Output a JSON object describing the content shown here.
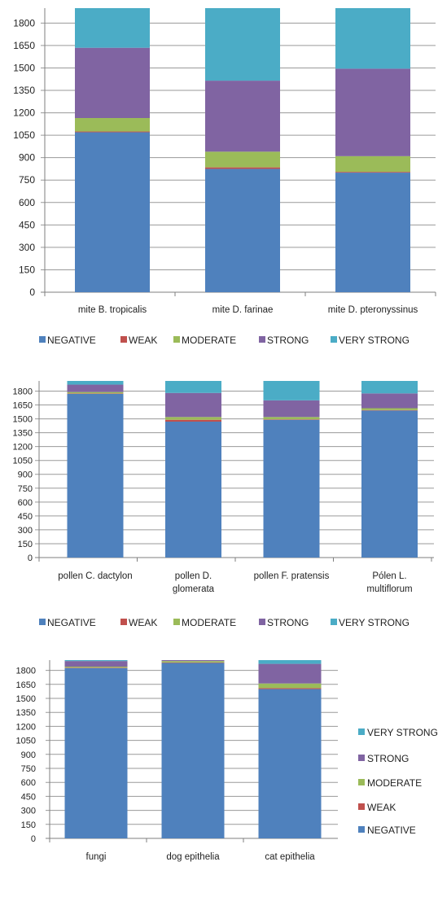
{
  "colors": {
    "NEGATIVE": "#4f81bd",
    "WEAK": "#c0504d",
    "MODERATE": "#9bbb59",
    "STRONG": "#8064a2",
    "VERY STRONG": "#4bacc6",
    "grid": "#9a9a9a",
    "axis": "#7f7f7f"
  },
  "chart_data": [
    {
      "type": "bar",
      "stacked": true,
      "categories": [
        "mite B. tropicalis",
        "mite D. farinae",
        "mite D. pteronyssinus"
      ],
      "series": [
        {
          "name": "NEGATIVE",
          "values": [
            1070,
            825,
            800
          ]
        },
        {
          "name": "WEAK",
          "values": [
            5,
            10,
            5
          ]
        },
        {
          "name": "MODERATE",
          "values": [
            90,
            105,
            105
          ]
        },
        {
          "name": "STRONG",
          "values": [
            470,
            475,
            585
          ]
        },
        {
          "name": "VERY STRONG",
          "values": [
            275,
            495,
            415
          ]
        }
      ],
      "y_ticks": [
        0,
        150,
        300,
        450,
        600,
        750,
        900,
        1050,
        1200,
        1350,
        1500,
        1650,
        1800
      ],
      "ylim": [
        0,
        1900
      ],
      "grid": true,
      "legend": [
        "NEGATIVE",
        "WEAK",
        "MODERATE",
        "STRONG",
        "VERY STRONG"
      ],
      "legend_position": "bottom"
    },
    {
      "type": "bar",
      "stacked": true,
      "categories": [
        "pollen C. dactylon",
        "pollen D. glomerata",
        "pollen F. pratensis",
        "Pólen L. multiflorum"
      ],
      "category_lines": [
        [
          "pollen C. dactylon"
        ],
        [
          "pollen D.",
          "glomerata"
        ],
        [
          "pollen F. pratensis"
        ],
        [
          "Pólen L.",
          "multiflorum"
        ]
      ],
      "series": [
        {
          "name": "NEGATIVE",
          "values": [
            1770,
            1470,
            1490,
            1590
          ]
        },
        {
          "name": "WEAK",
          "values": [
            5,
            20,
            5,
            5
          ]
        },
        {
          "name": "MODERATE",
          "values": [
            15,
            30,
            25,
            20
          ]
        },
        {
          "name": "STRONG",
          "values": [
            80,
            260,
            180,
            160
          ]
        },
        {
          "name": "VERY STRONG",
          "values": [
            40,
            130,
            210,
            135
          ]
        }
      ],
      "y_ticks": [
        0,
        150,
        300,
        450,
        600,
        750,
        900,
        1050,
        1200,
        1350,
        1500,
        1650,
        1800
      ],
      "ylim": [
        0,
        1910
      ],
      "grid": true,
      "legend": [
        "NEGATIVE",
        "WEAK",
        "MODERATE",
        "STRONG",
        "VERY STRONG"
      ],
      "legend_position": "bottom"
    },
    {
      "type": "bar",
      "stacked": true,
      "categories": [
        "fungi",
        "dog epithelia",
        "cat epithelia"
      ],
      "series": [
        {
          "name": "NEGATIVE",
          "values": [
            1825,
            1880,
            1600
          ]
        },
        {
          "name": "WEAK",
          "values": [
            5,
            5,
            10
          ]
        },
        {
          "name": "MODERATE",
          "values": [
            10,
            15,
            50
          ]
        },
        {
          "name": "STRONG",
          "values": [
            60,
            20,
            210
          ]
        },
        {
          "name": "VERY STRONG",
          "values": [
            10,
            10,
            40
          ]
        }
      ],
      "y_ticks": [
        0,
        150,
        300,
        450,
        600,
        750,
        900,
        1050,
        1200,
        1350,
        1500,
        1650,
        1800
      ],
      "ylim": [
        0,
        1910
      ],
      "grid": true,
      "legend": [
        "VERY STRONG",
        "STRONG",
        "MODERATE",
        "WEAK",
        "NEGATIVE"
      ],
      "legend_position": "right"
    }
  ]
}
